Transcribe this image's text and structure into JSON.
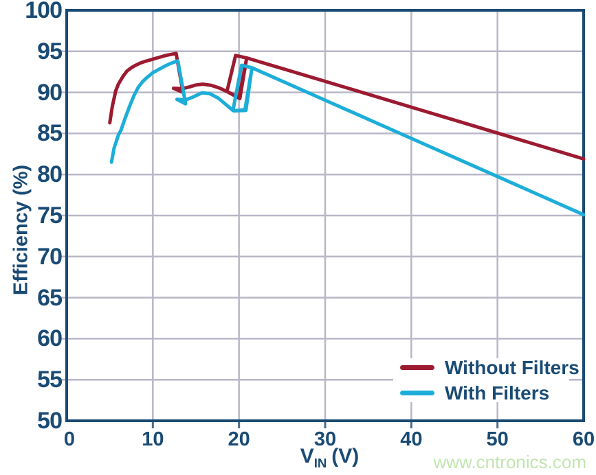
{
  "watermark": "www.cntronics.com",
  "colors": {
    "axis_text": "#1a4b74",
    "axis_frame": "#1a4b74",
    "grid": "#b7b7c7",
    "bottom_tick": "#4d6c8e",
    "left_tick": "#b7b7c7",
    "series_without_filters": "#9c1b31",
    "series_with_filters": "#1caed8",
    "watermark": "#c2e5b0",
    "background": "#ffffff"
  },
  "chart_data": {
    "type": "line",
    "title": "",
    "xlabel": {
      "main": "V",
      "sub": "IN",
      "unit": "(V)"
    },
    "ylabel": "Efficiency (%)",
    "xlim": [
      0,
      60
    ],
    "ylim": [
      50,
      100
    ],
    "x_ticks": [
      0,
      10,
      20,
      30,
      40,
      50,
      60
    ],
    "y_ticks": [
      50,
      55,
      60,
      65,
      70,
      75,
      80,
      85,
      90,
      95,
      100
    ],
    "grid": true,
    "legend_position": "bottom-right",
    "series": [
      {
        "name": "Without Filters",
        "color": "#9c1b31",
        "points": [
          [
            5,
            86.3
          ],
          [
            5.3,
            88.3
          ],
          [
            5.7,
            90.2
          ],
          [
            6,
            91.0
          ],
          [
            6.5,
            91.9
          ],
          [
            7,
            92.6
          ],
          [
            7.5,
            93.0
          ],
          [
            8,
            93.3
          ],
          [
            8.5,
            93.55
          ],
          [
            9,
            93.75
          ],
          [
            9.5,
            93.9
          ],
          [
            10,
            94.05
          ],
          [
            10.5,
            94.2
          ],
          [
            11,
            94.35
          ],
          [
            11.5,
            94.5
          ],
          [
            12,
            94.6
          ],
          [
            12.7,
            94.75
          ],
          [
            13.5,
            90.0
          ],
          [
            12.4,
            90.5
          ],
          [
            13.4,
            90.45
          ],
          [
            14.2,
            90.65
          ],
          [
            15,
            90.9
          ],
          [
            15.8,
            91.0
          ],
          [
            16.8,
            90.85
          ],
          [
            17.8,
            90.5
          ],
          [
            18.6,
            90.1
          ],
          [
            19.6,
            94.5
          ],
          [
            20.9,
            94.2
          ],
          [
            20.0,
            89.4
          ],
          [
            18.7,
            90.05
          ],
          [
            20.1,
            89.25
          ],
          [
            20.9,
            94.2
          ],
          [
            30,
            91.35
          ],
          [
            40,
            88.2
          ],
          [
            50,
            85.05
          ],
          [
            60,
            81.9
          ]
        ]
      },
      {
        "name": "With Filters",
        "color": "#1caed8",
        "points": [
          [
            5.2,
            81.5
          ],
          [
            5.5,
            83.2
          ],
          [
            6,
            84.8
          ],
          [
            6.3,
            85.4
          ],
          [
            6.8,
            86.9
          ],
          [
            7.3,
            88.3
          ],
          [
            7.8,
            89.6
          ],
          [
            8.3,
            90.6
          ],
          [
            8.8,
            91.3
          ],
          [
            9.3,
            91.8
          ],
          [
            10,
            92.4
          ],
          [
            10.7,
            92.8
          ],
          [
            11.4,
            93.2
          ],
          [
            12,
            93.5
          ],
          [
            12.9,
            93.85
          ],
          [
            13.8,
            88.6
          ],
          [
            12.8,
            89.15
          ],
          [
            13.8,
            89.1
          ],
          [
            14.6,
            89.4
          ],
          [
            15.7,
            89.95
          ],
          [
            16.6,
            89.85
          ],
          [
            17.6,
            89.3
          ],
          [
            18.5,
            88.5
          ],
          [
            19.3,
            87.8
          ],
          [
            20.3,
            93.3
          ],
          [
            21.5,
            93.0
          ],
          [
            20.7,
            87.9
          ],
          [
            19.4,
            87.75
          ],
          [
            20.8,
            87.8
          ],
          [
            21.5,
            93.0
          ],
          [
            30,
            89.05
          ],
          [
            40,
            84.4
          ],
          [
            50,
            79.75
          ],
          [
            60,
            75.1
          ]
        ]
      }
    ]
  }
}
